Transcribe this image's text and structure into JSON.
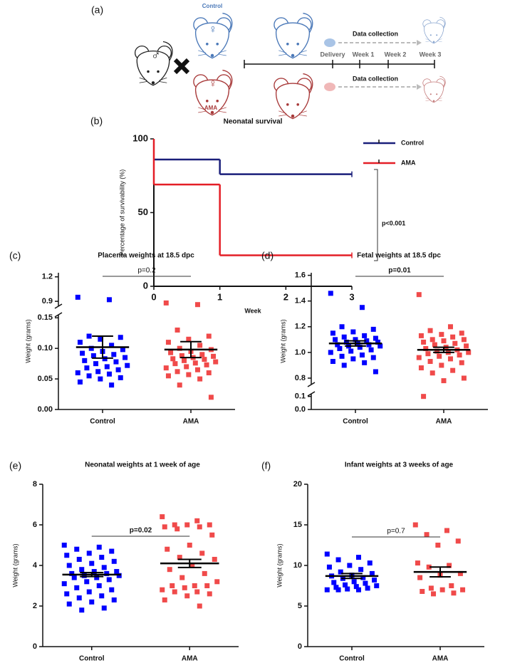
{
  "panel_a": {
    "label": "(a)",
    "control": "Control",
    "ama": "AMA",
    "collection_top": "Data collection",
    "collection_bottom": "Data collection",
    "timeline": [
      "Delivery",
      "Week 1",
      "Week 2",
      "Week 3"
    ]
  },
  "chart_data": [
    {
      "type": "step",
      "panel_label": "(b)",
      "title": "Neonatal survival",
      "x_label": "Week",
      "y_label": "Percentage of survivability (%)",
      "xlim": [
        0,
        3
      ],
      "xticks": [
        0,
        1,
        2,
        3
      ],
      "ylim": [
        0,
        100
      ],
      "yticks": [
        0,
        50,
        100
      ],
      "series": [
        {
          "name": "Control",
          "color": "#1a1f7a",
          "x": [
            0,
            1,
            3
          ],
          "values": [
            86,
            76,
            76
          ]
        },
        {
          "name": "AMA",
          "color": "#e41e26",
          "x": [
            0,
            0,
            1,
            3
          ],
          "values": [
            100,
            69,
            21,
            21
          ]
        }
      ],
      "annotation": "p<0.001"
    },
    {
      "type": "dot-plot",
      "panel_label": "(c)",
      "title": "Placenta weights at 18.5 dpc",
      "y_label": "Weight (grams)",
      "categories": [
        "Control",
        "AMA"
      ],
      "ylim": [
        [
          0,
          0.155
        ],
        [
          0.84,
          1.25
        ]
      ],
      "yticks": [
        {
          "value": 0,
          "label": "0.00"
        },
        0.05,
        {
          "value": 0.1,
          "label": "0.10"
        },
        0.15,
        0.9,
        1.2
      ],
      "annotation": "p=0.2",
      "annotation_bold": false,
      "groups": [
        {
          "color": "#0000ff",
          "mean": 0.102,
          "sem": 0.018,
          "values": [
            0.95,
            0.92,
            0.12,
            0.118,
            0.115,
            0.11,
            0.105,
            0.1,
            0.098,
            0.095,
            0.092,
            0.09,
            0.088,
            0.085,
            0.083,
            0.08,
            0.078,
            0.075,
            0.072,
            0.07,
            0.068,
            0.065,
            0.062,
            0.06,
            0.058,
            0.055,
            0.052,
            0.05,
            0.045,
            0.04
          ]
        },
        {
          "color": "#f04a4a",
          "mean": 0.098,
          "sem": 0.013,
          "values": [
            0.88,
            0.86,
            0.13,
            0.12,
            0.115,
            0.11,
            0.105,
            0.1,
            0.098,
            0.095,
            0.093,
            0.09,
            0.088,
            0.087,
            0.085,
            0.083,
            0.082,
            0.08,
            0.078,
            0.076,
            0.075,
            0.073,
            0.07,
            0.068,
            0.065,
            0.062,
            0.06,
            0.057,
            0.055,
            0.05,
            0.04,
            0.02
          ]
        }
      ]
    },
    {
      "type": "dot-plot",
      "panel_label": "(d)",
      "title": "Fetal weights at 18.5 dpc",
      "y_label": "Weight (grams)",
      "categories": [
        "Control",
        "AMA"
      ],
      "ylim": [
        [
          0,
          0.12
        ],
        [
          0.75,
          1.62
        ]
      ],
      "yticks": [
        {
          "value": 0,
          "label": "0.0"
        },
        0.1,
        0.8,
        {
          "value": 1,
          "label": "1.0"
        },
        1.2,
        1.4,
        1.6
      ],
      "annotation": "p=0.01",
      "annotation_bold": true,
      "groups": [
        {
          "color": "#0000ff",
          "mean": 1.07,
          "sem": 0.02,
          "values": [
            1.46,
            1.35,
            1.2,
            1.18,
            1.16,
            1.15,
            1.13,
            1.12,
            1.11,
            1.1,
            1.1,
            1.09,
            1.08,
            1.08,
            1.07,
            1.06,
            1.06,
            1.05,
            1.05,
            1.04,
            1.03,
            1.02,
            1.01,
            1.0,
            0.98,
            0.97,
            0.96,
            0.95,
            0.93,
            0.92,
            0.9,
            0.85
          ]
        },
        {
          "color": "#f04a4a",
          "mean": 1.02,
          "sem": 0.02,
          "values": [
            1.45,
            1.2,
            1.17,
            1.15,
            1.14,
            1.13,
            1.12,
            1.1,
            1.1,
            1.09,
            1.08,
            1.07,
            1.06,
            1.05,
            1.04,
            1.03,
            1.02,
            1.01,
            1.0,
            1.0,
            0.99,
            0.98,
            0.97,
            0.96,
            0.95,
            0.93,
            0.92,
            0.9,
            0.88,
            0.86,
            0.84,
            0.8,
            0.78,
            0.1
          ]
        }
      ]
    },
    {
      "type": "dot-plot",
      "panel_label": "(e)",
      "title": "Neonatal weights at 1 week of age",
      "y_label": "Weight (grams)",
      "categories": [
        "Control",
        "AMA"
      ],
      "ylim": [
        0,
        8
      ],
      "yticks": [
        0,
        2,
        4,
        6,
        8
      ],
      "annotation": "p=0.02",
      "annotation_bold": true,
      "groups": [
        {
          "color": "#0000ff",
          "mean": 3.55,
          "sem": 0.1,
          "values": [
            5.0,
            4.9,
            4.8,
            4.7,
            4.6,
            4.5,
            4.4,
            4.3,
            4.2,
            4.1,
            4.0,
            3.9,
            3.8,
            3.7,
            3.7,
            3.6,
            3.6,
            3.5,
            3.5,
            3.4,
            3.4,
            3.3,
            3.2,
            3.1,
            3.0,
            2.9,
            2.8,
            2.7,
            2.6,
            2.5,
            2.4,
            2.3,
            2.2,
            2.1,
            1.9,
            1.8
          ]
        },
        {
          "color": "#f04a4a",
          "mean": 4.1,
          "sem": 0.2,
          "values": [
            6.4,
            6.2,
            6.0,
            6.0,
            6.0,
            5.9,
            5.9,
            5.8,
            5.5,
            5.0,
            4.8,
            4.6,
            4.4,
            4.3,
            4.0,
            3.8,
            3.6,
            3.4,
            3.2,
            3.0,
            3.0,
            3.0,
            2.9,
            2.8,
            2.7,
            2.7,
            2.6,
            2.5,
            2.3,
            2.0
          ]
        }
      ]
    },
    {
      "type": "dot-plot",
      "panel_label": "(f)",
      "title": "Infant weights at 3 weeks of age",
      "y_label": "Weight (grams)",
      "categories": [
        "Control",
        "AMA"
      ],
      "ylim": [
        0,
        20
      ],
      "yticks": [
        0,
        5,
        10,
        15,
        20
      ],
      "annotation": "p=0.7",
      "annotation_bold": false,
      "groups": [
        {
          "color": "#0000ff",
          "mean": 8.7,
          "sem": 0.3,
          "values": [
            11.4,
            11.0,
            10.7,
            10.3,
            10.0,
            9.8,
            9.5,
            9.2,
            9.0,
            8.8,
            8.7,
            8.5,
            8.4,
            8.2,
            8.0,
            7.9,
            7.8,
            7.6,
            7.5,
            7.4,
            7.3,
            7.2,
            7.1,
            7.0,
            7.0,
            7.0
          ]
        },
        {
          "color": "#f04a4a",
          "mean": 9.2,
          "sem": 0.6,
          "values": [
            15.0,
            14.3,
            13.8,
            13.0,
            12.5,
            10.3,
            10.0,
            9.8,
            9.0,
            8.8,
            8.5,
            7.5,
            7.2,
            7.0,
            7.0,
            6.8,
            6.6,
            6.5
          ]
        }
      ]
    }
  ]
}
